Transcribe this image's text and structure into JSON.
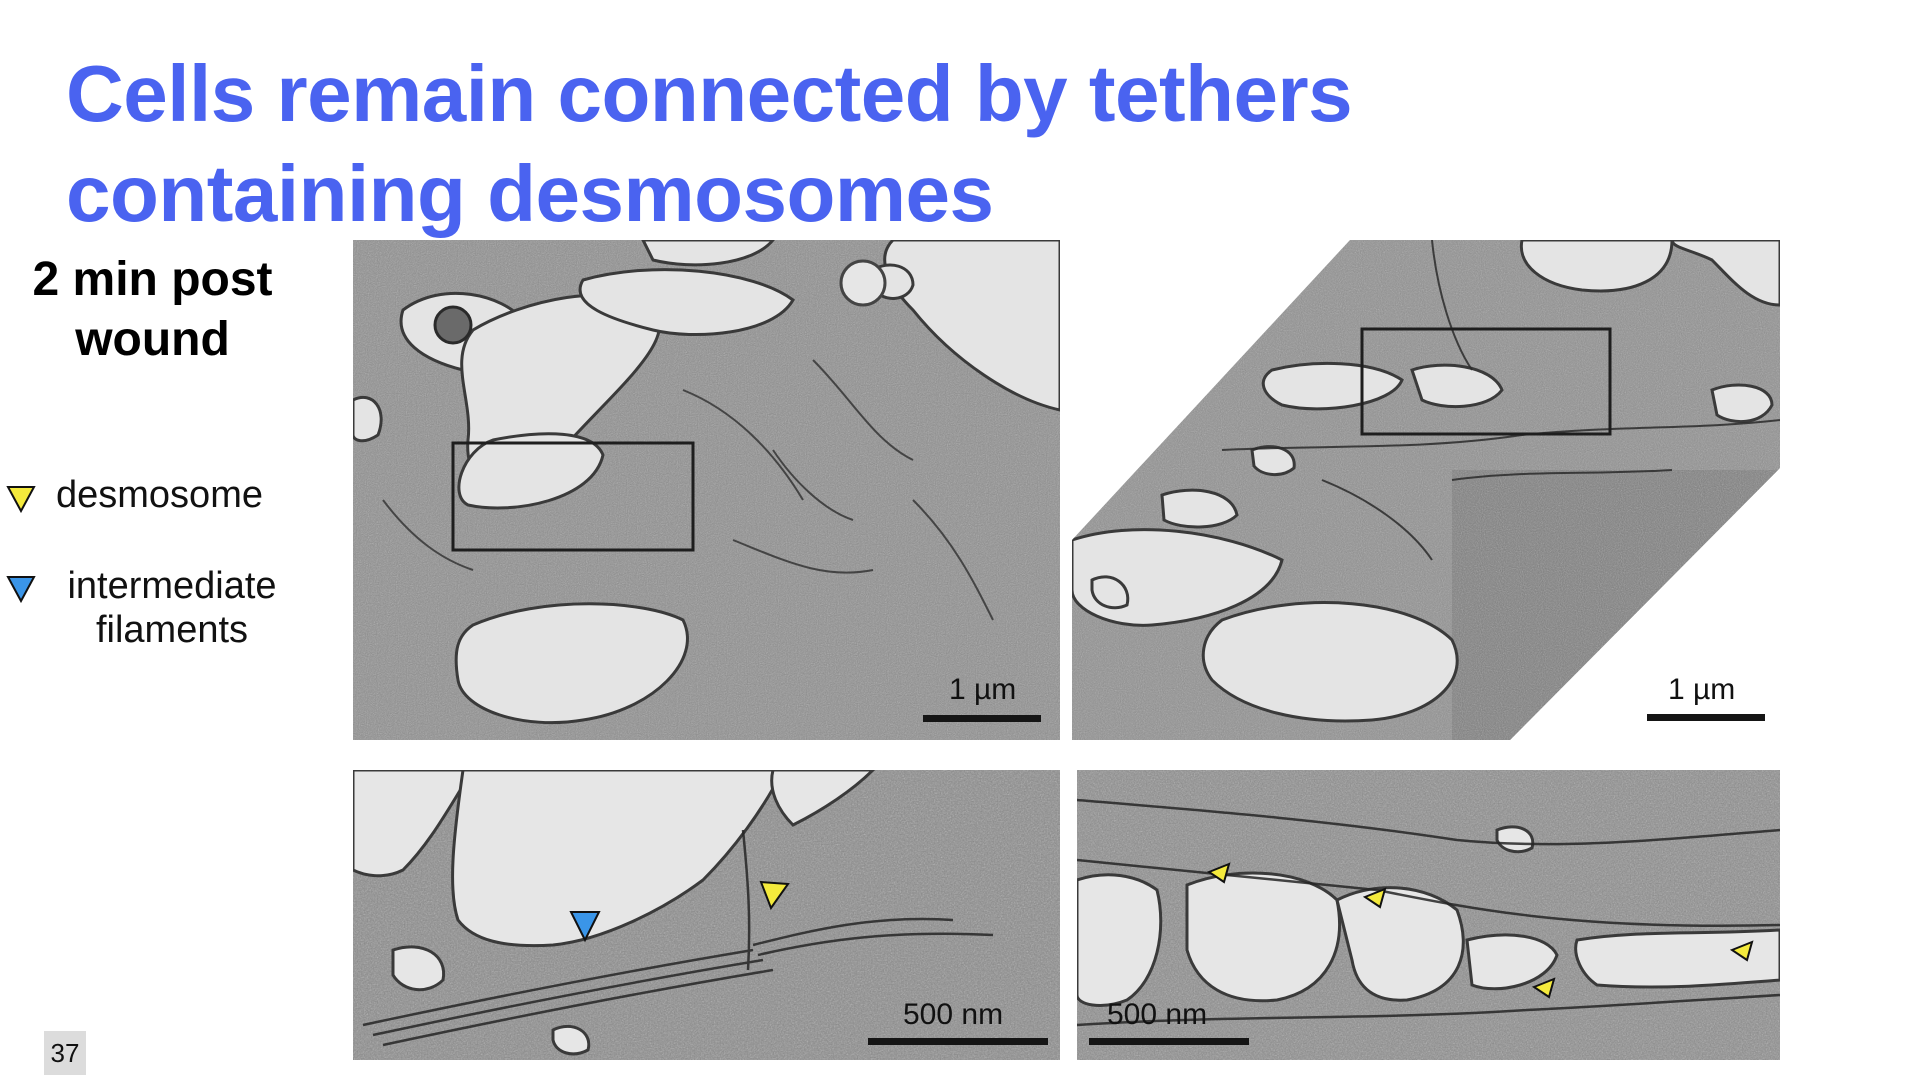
{
  "title": {
    "line1": "Cells remain connected by tethers",
    "line2": "containing desmosomes"
  },
  "timepoint": {
    "line1": "2 min post",
    "line2": "wound"
  },
  "legend": {
    "desmosome": {
      "label": "desmosome",
      "color": "#f4ea3c",
      "icon": "yellow-triangle-icon"
    },
    "intermediate_filaments": {
      "label_line1": "intermediate",
      "label_line2": "filaments",
      "color": "#3a95e8",
      "icon": "blue-triangle-icon"
    }
  },
  "panels": {
    "top_left": {
      "scale_label": "1 µm"
    },
    "top_right": {
      "scale_label": "1 µm"
    },
    "bottom_left": {
      "scale_label": "500 nm"
    },
    "bottom_right": {
      "scale_label": "500 nm"
    }
  },
  "slide_number": "37"
}
